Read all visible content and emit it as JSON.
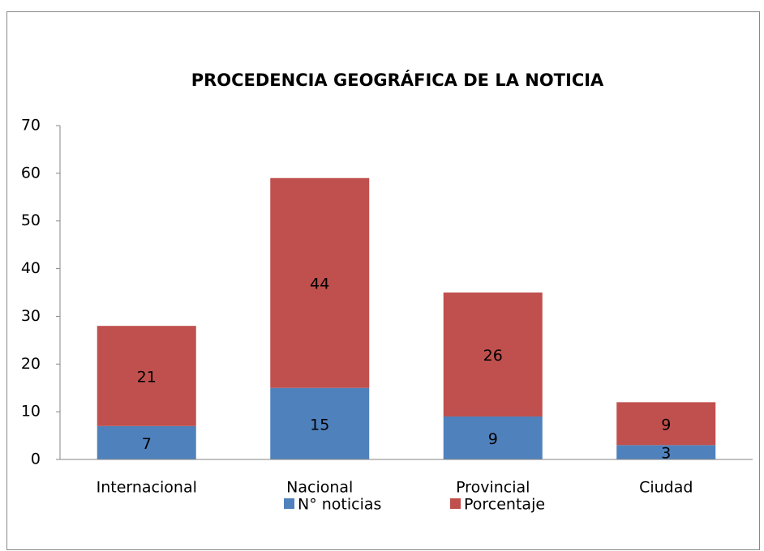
{
  "chart_data": {
    "type": "stacked_bar",
    "title": "PROCEDENCIA GEOGRÁFICA DE LA NOTICIA",
    "categories": [
      "Internacional",
      "Nacional",
      "Provincial",
      "Ciudad"
    ],
    "series": [
      {
        "name": "N° noticias",
        "color": "#4f81bd",
        "values": [
          7,
          15,
          9,
          3
        ]
      },
      {
        "name": "Porcentaje",
        "color": "#c0504d",
        "values": [
          21,
          44,
          26,
          9
        ]
      }
    ],
    "ylim": [
      0,
      70
    ],
    "yticks": [
      0,
      10,
      20,
      30,
      40,
      50,
      60,
      70
    ],
    "legend": "bottom"
  }
}
